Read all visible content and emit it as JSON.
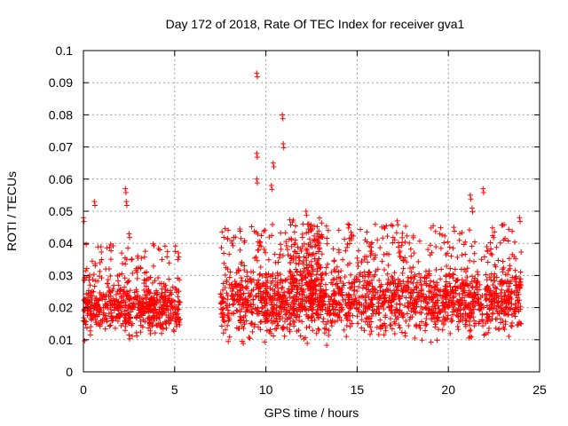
{
  "chart_data": {
    "type": "scatter",
    "title": "Day 172 of 2018, Rate Of TEC Index for receiver gva1",
    "xlabel": "GPS time / hours",
    "ylabel": "ROTI / TECUs",
    "xlim": [
      0,
      25
    ],
    "ylim": [
      0,
      0.1
    ],
    "x_ticks": [
      "0",
      "5",
      "10",
      "15",
      "20",
      "25"
    ],
    "y_ticks": [
      "0",
      "0.01",
      "0.02",
      "0.03",
      "0.04",
      "0.05",
      "0.06",
      "0.07",
      "0.08",
      "0.09",
      "0.1"
    ],
    "grid": true,
    "marker": "+",
    "color": "#ff0000",
    "segments": [
      {
        "x": [
          0.0,
          5.3
        ],
        "y_range": [
          0.007,
          0.032
        ]
      },
      {
        "x": [
          7.5,
          24.0
        ],
        "y_range": [
          0.005,
          0.038
        ]
      }
    ],
    "highlights": [
      {
        "x": 9.5,
        "y": 0.093
      },
      {
        "x": 10.9,
        "y": 0.08
      },
      {
        "x": 10.95,
        "y": 0.071
      },
      {
        "x": 9.5,
        "y": 0.068
      },
      {
        "x": 10.4,
        "y": 0.065
      },
      {
        "x": 9.5,
        "y": 0.06
      },
      {
        "x": 10.3,
        "y": 0.058
      },
      {
        "x": 2.3,
        "y": 0.057
      },
      {
        "x": 2.35,
        "y": 0.053
      },
      {
        "x": 21.9,
        "y": 0.057
      },
      {
        "x": 21.2,
        "y": 0.055
      },
      {
        "x": 0.6,
        "y": 0.053
      },
      {
        "x": 21.3,
        "y": 0.051
      },
      {
        "x": 0.0,
        "y": 0.048
      },
      {
        "x": 23.9,
        "y": 0.048
      },
      {
        "x": 12.2,
        "y": 0.05
      },
      {
        "x": 17.2,
        "y": 0.047
      },
      {
        "x": 14.5,
        "y": 0.046
      },
      {
        "x": 2.5,
        "y": 0.043
      },
      {
        "x": 5.2,
        "y": 0.037
      },
      {
        "x": 20.3,
        "y": 0.045
      }
    ]
  }
}
